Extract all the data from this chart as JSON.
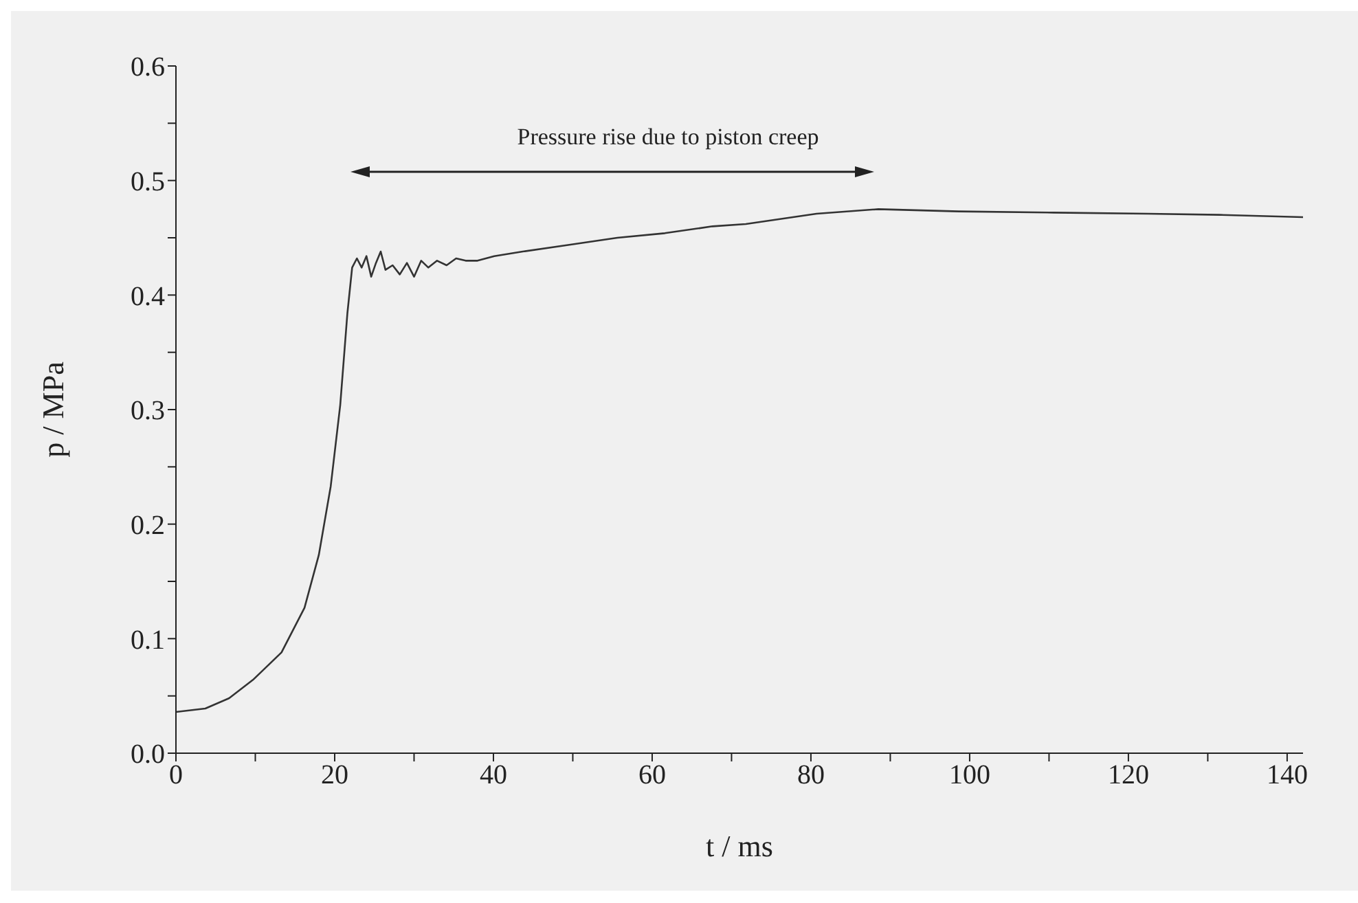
{
  "chart_data": {
    "type": "line",
    "xlabel": "t / ms",
    "ylabel": "p / MPa",
    "x": [
      0,
      3.7,
      6.7,
      9.7,
      13.3,
      16.2,
      18.0,
      19.5,
      20.7,
      21.6,
      22.2,
      22.8,
      23.4,
      24.0,
      24.6,
      25.2,
      25.8,
      26.4,
      27.3,
      28.2,
      29.1,
      30.0,
      30.9,
      31.8,
      32.9,
      34.1,
      35.3,
      36.5,
      38.0,
      40.1,
      43.7,
      49.7,
      55.6,
      61.6,
      67.6,
      71.8,
      80.7,
      88.5,
      98.6,
      110.6,
      122.5,
      131.5,
      142.0
    ],
    "series": [
      {
        "color": "#333333",
        "values": [
          0.036,
          0.039,
          0.048,
          0.064,
          0.088,
          0.127,
          0.173,
          0.233,
          0.304,
          0.384,
          0.424,
          0.432,
          0.424,
          0.434,
          0.416,
          0.428,
          0.438,
          0.422,
          0.426,
          0.418,
          0.428,
          0.416,
          0.43,
          0.424,
          0.43,
          0.426,
          0.432,
          0.43,
          0.43,
          0.434,
          0.438,
          0.444,
          0.45,
          0.454,
          0.46,
          0.462,
          0.471,
          0.475,
          0.473,
          0.472,
          0.471,
          0.47,
          0.468
        ]
      }
    ],
    "xlim": [
      0,
      142
    ],
    "xticks": [
      0,
      {
        "value": 10,
        "label": null
      },
      20,
      {
        "value": 30,
        "label": null
      },
      40,
      {
        "value": 50,
        "label": null
      },
      60,
      {
        "value": 70,
        "label": null
      },
      80,
      {
        "value": 90,
        "label": null
      },
      100,
      {
        "value": 110,
        "label": null
      },
      120,
      {
        "value": 130,
        "label": null
      },
      140
    ],
    "ylim": [
      0,
      0.6
    ],
    "yticks": [
      {
        "value": 0,
        "label": "0.0"
      },
      {
        "value": 0.05,
        "label": null
      },
      0.1,
      {
        "value": 0.15,
        "label": null
      },
      0.2,
      {
        "value": 0.25,
        "label": null
      },
      0.3,
      {
        "value": 0.35,
        "label": null
      },
      0.4,
      {
        "value": 0.45,
        "label": null
      },
      0.5,
      {
        "value": 0.55,
        "label": null
      },
      0.6
    ],
    "annotations": [
      "Pressure rise due to piston creep"
    ],
    "marker": "none",
    "line_style": "solid"
  }
}
